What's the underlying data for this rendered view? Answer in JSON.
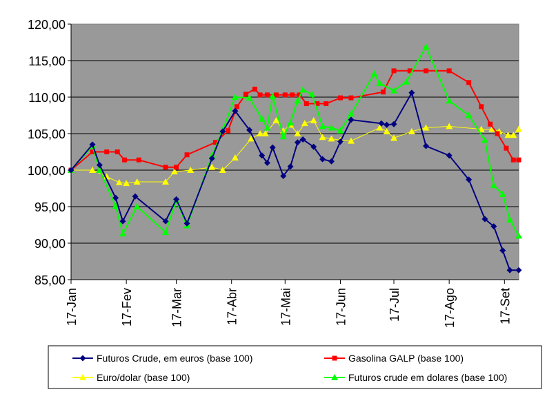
{
  "chart_data": {
    "type": "line",
    "title": "",
    "xlabel": "",
    "ylabel": "",
    "ylim": [
      85,
      120
    ],
    "yticks": [
      "85,00",
      "90,00",
      "95,00",
      "100,00",
      "105,00",
      "110,00",
      "115,00",
      "120,00"
    ],
    "x_range": [
      "2005-01-17",
      "2005-09-25"
    ],
    "xticks": [
      {
        "date": "2005-01-17",
        "label": "17-Jan"
      },
      {
        "date": "2005-02-17",
        "label": "17-Fev"
      },
      {
        "date": "2005-03-17",
        "label": "17-Mar"
      },
      {
        "date": "2005-04-17",
        "label": "17-Abr"
      },
      {
        "date": "2005-05-17",
        "label": "17-Mai"
      },
      {
        "date": "2005-06-17",
        "label": "17-Jun"
      },
      {
        "date": "2005-07-17",
        "label": "17-Jul"
      },
      {
        "date": "2005-08-17",
        "label": "17-Ago"
      },
      {
        "date": "2005-09-17",
        "label": "17-Set"
      }
    ],
    "plot_background": "#999999",
    "grid": true,
    "legend_position": "bottom",
    "series": [
      {
        "name": "Futuros Crude, em euros (base 100)",
        "color": "#000080",
        "marker": "diamond",
        "x": [
          "2005-01-17",
          "2005-01-29",
          "2005-02-02",
          "2005-02-11",
          "2005-02-15",
          "2005-02-22",
          "2005-03-11",
          "2005-03-17",
          "2005-03-23",
          "2005-04-06",
          "2005-04-12",
          "2005-04-19",
          "2005-04-27",
          "2005-05-04",
          "2005-05-07",
          "2005-05-10",
          "2005-05-16",
          "2005-05-20",
          "2005-05-24",
          "2005-05-27",
          "2005-06-02",
          "2005-06-07",
          "2005-06-12",
          "2005-06-17",
          "2005-06-23",
          "2005-07-10",
          "2005-07-13",
          "2005-07-17",
          "2005-07-27",
          "2005-08-04",
          "2005-08-17",
          "2005-08-28",
          "2005-09-06",
          "2005-09-11",
          "2005-09-16",
          "2005-09-20",
          "2005-09-25"
        ],
        "values": [
          100.0,
          103.5,
          100.7,
          96.2,
          93.0,
          96.4,
          93.0,
          96.0,
          92.7,
          101.6,
          105.3,
          108.1,
          105.5,
          102.0,
          101.0,
          103.1,
          99.2,
          100.5,
          103.8,
          104.2,
          103.2,
          101.5,
          101.2,
          103.9,
          106.9,
          106.4,
          106.2,
          106.3,
          110.6,
          103.3,
          102.0,
          98.7,
          93.3,
          92.3,
          89.0,
          86.3,
          86.3
        ]
      },
      {
        "name": "Gasolina GALP (base 100)",
        "color": "#ff0000",
        "marker": "square",
        "x": [
          "2005-01-17",
          "2005-01-29",
          "2005-02-06",
          "2005-02-12",
          "2005-02-16",
          "2005-02-24",
          "2005-03-11",
          "2005-03-17",
          "2005-03-23",
          "2005-04-08",
          "2005-04-15",
          "2005-04-20",
          "2005-04-25",
          "2005-04-30",
          "2005-05-03",
          "2005-05-07",
          "2005-05-12",
          "2005-05-17",
          "2005-05-21",
          "2005-05-25",
          "2005-05-29",
          "2005-06-04",
          "2005-06-09",
          "2005-06-17",
          "2005-06-23",
          "2005-07-11",
          "2005-07-17",
          "2005-07-26",
          "2005-08-04",
          "2005-08-17",
          "2005-08-28",
          "2005-09-04",
          "2005-09-09",
          "2005-09-13",
          "2005-09-18",
          "2005-09-22",
          "2005-09-25"
        ],
        "values": [
          100.0,
          102.5,
          102.5,
          102.5,
          101.4,
          101.4,
          100.4,
          100.4,
          102.1,
          103.8,
          105.4,
          108.7,
          110.4,
          111.1,
          110.3,
          110.3,
          110.3,
          110.3,
          110.3,
          110.3,
          109.1,
          109.1,
          109.1,
          109.9,
          109.9,
          110.7,
          113.6,
          113.6,
          113.6,
          113.6,
          112.0,
          108.7,
          106.3,
          105.0,
          103.0,
          101.4,
          101.4
        ]
      },
      {
        "name": "Euro/dolar (base 100)",
        "color": "#ffff00",
        "marker": "triangle",
        "x": [
          "2005-01-17",
          "2005-01-29",
          "2005-02-06",
          "2005-02-13",
          "2005-02-17",
          "2005-02-23",
          "2005-03-11",
          "2005-03-16",
          "2005-03-25",
          "2005-04-06",
          "2005-04-12",
          "2005-04-19",
          "2005-04-28",
          "2005-05-03",
          "2005-05-06",
          "2005-05-12",
          "2005-05-16",
          "2005-05-20",
          "2005-05-24",
          "2005-05-28",
          "2005-06-02",
          "2005-06-07",
          "2005-06-12",
          "2005-06-17",
          "2005-06-23",
          "2005-07-09",
          "2005-07-13",
          "2005-07-17",
          "2005-07-27",
          "2005-08-04",
          "2005-08-17",
          "2005-09-04",
          "2005-09-10",
          "2005-09-14",
          "2005-09-19",
          "2005-09-22",
          "2005-09-25"
        ],
        "values": [
          100.0,
          100.0,
          99.1,
          98.3,
          98.2,
          98.4,
          98.4,
          99.8,
          100.0,
          100.4,
          100.0,
          101.7,
          104.3,
          105.0,
          105.0,
          106.8,
          105.4,
          106.2,
          105.0,
          106.4,
          106.8,
          104.5,
          104.3,
          104.1,
          104.0,
          105.8,
          105.3,
          104.4,
          105.3,
          105.8,
          106.0,
          105.6,
          105.6,
          105.3,
          104.8,
          104.8,
          105.6
        ]
      },
      {
        "name": "Futuros crude em dolares (base 100)",
        "color": "#00ff00",
        "marker": "triangle",
        "x": [
          "2005-01-17",
          "2005-01-29",
          "2005-02-02",
          "2005-02-11",
          "2005-02-15",
          "2005-02-23",
          "2005-03-11",
          "2005-03-17",
          "2005-03-23",
          "2005-04-06",
          "2005-04-12",
          "2005-04-19",
          "2005-04-27",
          "2005-05-04",
          "2005-05-07",
          "2005-05-10",
          "2005-05-16",
          "2005-05-20",
          "2005-05-24",
          "2005-05-27",
          "2005-06-01",
          "2005-06-07",
          "2005-06-12",
          "2005-06-17",
          "2005-06-23",
          "2005-07-06",
          "2005-07-09",
          "2005-07-17",
          "2005-07-24",
          "2005-08-04",
          "2005-08-17",
          "2005-08-28",
          "2005-09-06",
          "2005-09-11",
          "2005-09-16",
          "2005-09-20",
          "2005-09-25"
        ],
        "values": [
          100.0,
          103.3,
          100.0,
          95.1,
          91.3,
          95.0,
          91.5,
          95.8,
          92.4,
          102.0,
          105.5,
          110.0,
          109.9,
          107.0,
          105.8,
          110.1,
          104.6,
          106.5,
          109.5,
          111.0,
          110.4,
          106.0,
          105.8,
          105.4,
          107.7,
          113.2,
          111.9,
          110.9,
          112.1,
          116.9,
          109.5,
          107.5,
          104.1,
          97.9,
          96.7,
          93.2,
          91.0
        ]
      }
    ]
  }
}
